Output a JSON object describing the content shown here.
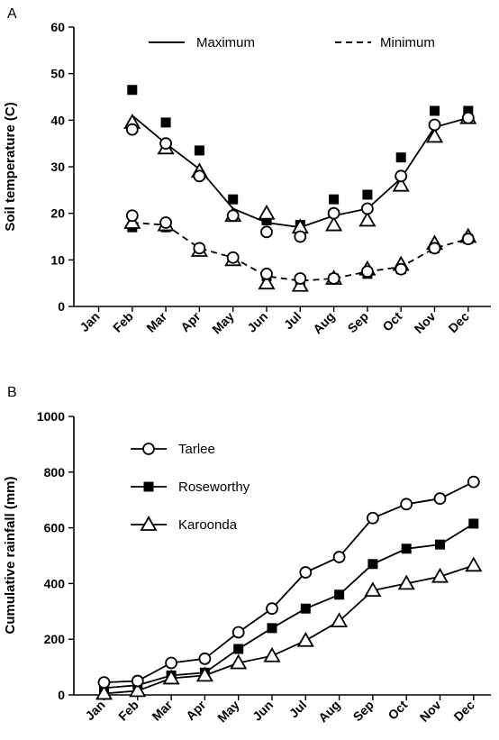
{
  "chart_data": [
    {
      "panel": "A",
      "type": "line",
      "ylabel": "Soil temperature (C)",
      "xlabel": "",
      "categories": [
        "Jan",
        "Feb",
        "Mar",
        "Apr",
        "May",
        "Jun",
        "Jul",
        "Aug",
        "Sep",
        "Oct",
        "Nov",
        "Dec"
      ],
      "ylim": [
        0,
        60
      ],
      "yticks": [
        0,
        10,
        20,
        30,
        40,
        50,
        60
      ],
      "legend": [
        {
          "label": "Maximum",
          "style": "solid"
        },
        {
          "label": "Minimum",
          "style": "dashed"
        }
      ],
      "legend_position": "top",
      "series": [
        {
          "site": "circle",
          "group": "max",
          "marker": "circle",
          "values": [
            null,
            38,
            35,
            28,
            19.5,
            16,
            15,
            20,
            21,
            28,
            39,
            40.5
          ]
        },
        {
          "site": "square",
          "group": "max",
          "marker": "square",
          "values": [
            null,
            46.5,
            39.5,
            33.5,
            23,
            18.5,
            17.5,
            23,
            24,
            32,
            42,
            42
          ]
        },
        {
          "site": "triangle",
          "group": "max",
          "marker": "triangle",
          "values": [
            null,
            39.5,
            34,
            29,
            19.5,
            20,
            17,
            17.5,
            18.5,
            26,
            36.5,
            40.5
          ]
        },
        {
          "site": "circle",
          "group": "min",
          "marker": "circle",
          "values": [
            null,
            19.5,
            18,
            12.5,
            10.5,
            7,
            6,
            6,
            7.5,
            8,
            12.5,
            14.5
          ]
        },
        {
          "site": "square",
          "group": "min",
          "marker": "square",
          "values": [
            null,
            17,
            17,
            12,
            10,
            6.5,
            5.5,
            6,
            7,
            8,
            12.5,
            14.5
          ]
        },
        {
          "site": "triangle",
          "group": "min",
          "marker": "triangle",
          "values": [
            null,
            18,
            17.5,
            12,
            10,
            5,
            4.5,
            6,
            8,
            9,
            13.5,
            15
          ]
        }
      ],
      "lines": [
        {
          "name": "Maximum",
          "style": "solid",
          "values": [
            null,
            41,
            35,
            29.5,
            21,
            18,
            17,
            19.5,
            21,
            27.5,
            38.5,
            40.5
          ]
        },
        {
          "name": "Minimum",
          "style": "dashed",
          "values": [
            null,
            18,
            17.5,
            12.5,
            10.5,
            6.5,
            5.5,
            6,
            7.5,
            8.5,
            12.5,
            14.5
          ]
        }
      ]
    },
    {
      "panel": "B",
      "type": "line",
      "ylabel": "Cumulative rainfall (mm)",
      "xlabel": "",
      "categories": [
        "Jan",
        "Feb",
        "Mar",
        "Apr",
        "May",
        "Jun",
        "Jul",
        "Aug",
        "Sep",
        "Oct",
        "Nov",
        "Dec"
      ],
      "ylim": [
        0,
        1000
      ],
      "yticks": [
        0,
        200,
        400,
        600,
        800,
        1000
      ],
      "legend_position": "top-left",
      "series": [
        {
          "name": "Tarlee",
          "marker": "circle",
          "values": [
            45,
            50,
            115,
            130,
            225,
            310,
            440,
            495,
            635,
            685,
            705,
            765
          ]
        },
        {
          "name": "Roseworthy",
          "marker": "square",
          "values": [
            25,
            35,
            70,
            80,
            165,
            240,
            310,
            360,
            470,
            525,
            540,
            615
          ]
        },
        {
          "name": "Karoonda",
          "marker": "triangle",
          "values": [
            5,
            15,
            60,
            70,
            115,
            140,
            195,
            265,
            375,
            400,
            425,
            465
          ]
        }
      ]
    }
  ]
}
